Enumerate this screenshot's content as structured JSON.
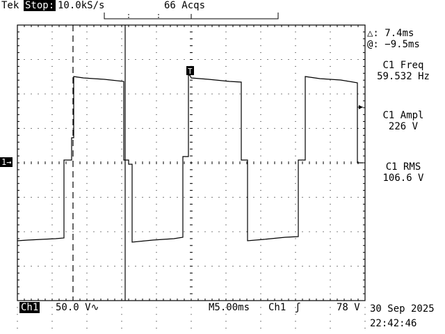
{
  "header": {
    "brand": "Tek",
    "run_state": "Stop:",
    "sample_rate": "10.0kS/s",
    "acquisitions": "66 Acqs"
  },
  "cursor_readout": {
    "delta": "△: 7.4ms",
    "at": "@: −9.5ms"
  },
  "measurements": [
    {
      "label": "C1 Freq",
      "value": "59.532 Hz"
    },
    {
      "label": "C1 Ampl",
      "value": "226 V"
    },
    {
      "label": "C1 RMS",
      "value": "106.6 V"
    }
  ],
  "footer": {
    "channel": "Ch1",
    "volts_per_div": "50.0 V∿",
    "timebase": "M5.00ms",
    "trigger_source": "Ch1",
    "trigger_slope_symbol": "ʃ",
    "trigger_level": "78 V",
    "date": "30 Sep 2025",
    "time": "22:42:46"
  },
  "markers": {
    "channel_ground": "1→",
    "trigger_position": "T"
  }
}
